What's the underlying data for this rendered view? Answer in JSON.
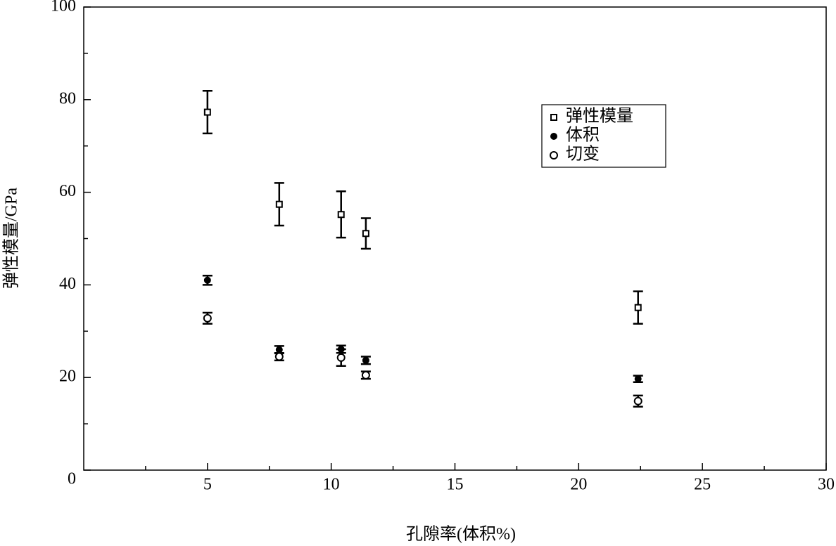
{
  "chart_data": {
    "type": "scatter",
    "x_label": "孔隙率(体积%)",
    "y_label": "弹性模量/GPa",
    "xlim": [
      0,
      30
    ],
    "ylim": [
      0,
      100
    ],
    "xticks": [
      5,
      10,
      15,
      20,
      25,
      30
    ],
    "yticks": [
      0,
      20,
      40,
      60,
      80,
      100
    ],
    "xminor_ticks": [
      2.5,
      7.5,
      12.5,
      17.5,
      22.5,
      27.5
    ],
    "yminor_ticks": [
      10,
      30,
      50,
      70,
      90
    ],
    "series": [
      {
        "name": "弹性模量",
        "marker": "square",
        "color": "#000000",
        "x": [
          5,
          7.9,
          10.4,
          11.4,
          22.4
        ],
        "values": [
          77.3,
          57.4,
          55.2,
          51.1,
          35.1
        ],
        "errors": [
          4.6,
          4.6,
          5,
          3.3,
          3.5
        ]
      },
      {
        "name": "体积",
        "marker": "filled-circle",
        "color": "#000000",
        "x": [
          5,
          7.9,
          10.4,
          11.4,
          22.4
        ],
        "values": [
          41,
          26,
          26.1,
          23.7,
          19.7
        ],
        "errors": [
          1,
          0.8,
          0.8,
          0.8,
          0.7
        ]
      },
      {
        "name": "切变",
        "marker": "open-circle",
        "color": "#000000",
        "x": [
          5,
          7.9,
          10.4,
          11.4,
          22.4
        ],
        "values": [
          32.8,
          24.5,
          24.3,
          20.5,
          14.9
        ],
        "errors": [
          1.2,
          0.8,
          1.8,
          0.8,
          1.2
        ]
      }
    ]
  }
}
